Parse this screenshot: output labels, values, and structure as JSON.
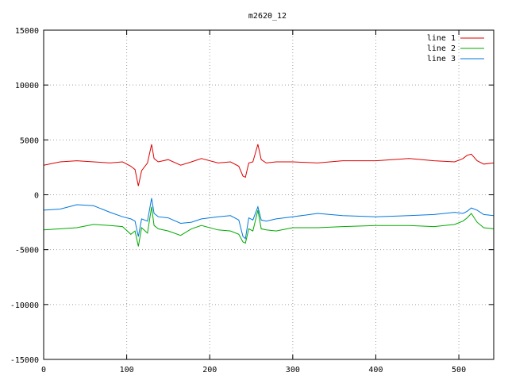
{
  "chart_data": {
    "type": "line",
    "title": "m2620_12",
    "xlabel": "",
    "ylabel": "",
    "xlim": [
      0,
      542
    ],
    "ylim": [
      -15000,
      15000
    ],
    "xticks": [
      0,
      100,
      200,
      300,
      400,
      500
    ],
    "yticks": [
      -15000,
      -10000,
      -5000,
      0,
      5000,
      10000,
      15000
    ],
    "grid": true,
    "legend_position": "top-right",
    "series": [
      {
        "name": "line 1",
        "color": "#dd0000",
        "x": [
          0,
          20,
          40,
          60,
          80,
          95,
          105,
          110,
          114,
          118,
          125,
          130,
          133,
          138,
          150,
          165,
          178,
          190,
          210,
          225,
          235,
          240,
          243,
          247,
          252,
          258,
          262,
          268,
          280,
          300,
          330,
          360,
          400,
          440,
          470,
          495,
          505,
          510,
          515,
          522,
          530,
          542
        ],
        "y": [
          2700,
          3000,
          3100,
          3000,
          2900,
          3000,
          2600,
          2300,
          800,
          2200,
          2900,
          4600,
          3300,
          3000,
          3200,
          2700,
          3000,
          3300,
          2900,
          3000,
          2600,
          1700,
          1600,
          2900,
          3000,
          4600,
          3200,
          2900,
          3000,
          3000,
          2900,
          3100,
          3100,
          3300,
          3100,
          3000,
          3300,
          3600,
          3700,
          3100,
          2800,
          2900
        ]
      },
      {
        "name": "line 2",
        "color": "#00aa00",
        "x": [
          0,
          20,
          40,
          60,
          80,
          95,
          105,
          110,
          114,
          118,
          125,
          130,
          133,
          138,
          150,
          165,
          178,
          190,
          210,
          225,
          235,
          240,
          243,
          247,
          252,
          258,
          262,
          268,
          280,
          300,
          330,
          360,
          400,
          440,
          470,
          495,
          505,
          510,
          515,
          522,
          530,
          542
        ],
        "y": [
          -3200,
          -3100,
          -3000,
          -2700,
          -2800,
          -2900,
          -3600,
          -3300,
          -4700,
          -3000,
          -3500,
          -1100,
          -2800,
          -3100,
          -3300,
          -3700,
          -3100,
          -2800,
          -3200,
          -3300,
          -3600,
          -4300,
          -4400,
          -3100,
          -3300,
          -1400,
          -3100,
          -3200,
          -3300,
          -3000,
          -3000,
          -2900,
          -2800,
          -2800,
          -2900,
          -2700,
          -2400,
          -2100,
          -1700,
          -2500,
          -3000,
          -3100
        ]
      },
      {
        "name": "line 3",
        "color": "#0077dd",
        "x": [
          0,
          20,
          40,
          60,
          80,
          95,
          105,
          110,
          114,
          118,
          125,
          130,
          133,
          138,
          150,
          165,
          178,
          190,
          210,
          225,
          235,
          240,
          243,
          247,
          252,
          258,
          262,
          268,
          280,
          300,
          330,
          360,
          400,
          440,
          470,
          495,
          505,
          510,
          515,
          522,
          530,
          542
        ],
        "y": [
          -1400,
          -1300,
          -900,
          -1000,
          -1600,
          -2000,
          -2200,
          -2400,
          -3800,
          -2200,
          -2400,
          -300,
          -1700,
          -2000,
          -2100,
          -2600,
          -2500,
          -2200,
          -2000,
          -1900,
          -2300,
          -3800,
          -4000,
          -2100,
          -2300,
          -1100,
          -2300,
          -2400,
          -2200,
          -2000,
          -1700,
          -1900,
          -2000,
          -1900,
          -1800,
          -1600,
          -1700,
          -1500,
          -1200,
          -1400,
          -1800,
          -1900
        ]
      }
    ]
  }
}
